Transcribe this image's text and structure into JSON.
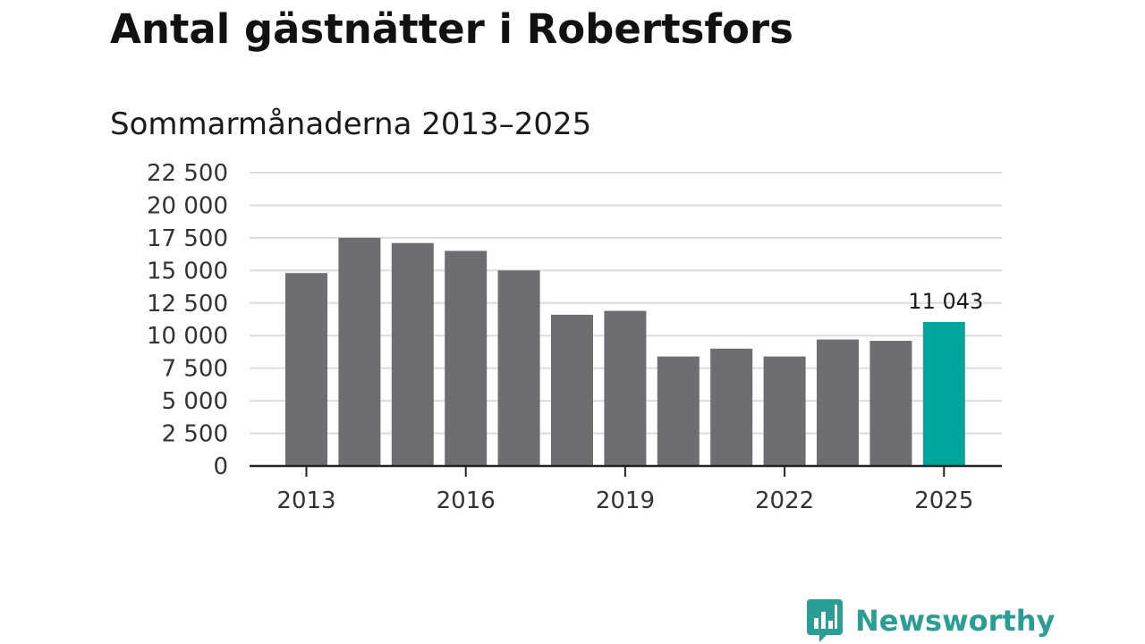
{
  "title": "Antal gästnätter i Robertsfors",
  "subtitle": "Sommarmånaderna 2013–2025",
  "brand": {
    "name": "Newsworthy",
    "logo_icon": "bar-chart-speech-bubble",
    "color": "#2a9d95"
  },
  "colors": {
    "bar": "#6e6d72",
    "highlight": "#00a49a",
    "grid": "#dcdcdc",
    "axis": "#222222"
  },
  "chart_data": {
    "type": "bar",
    "categories": [
      "2013",
      "2014",
      "2015",
      "2016",
      "2017",
      "2018",
      "2019",
      "2020",
      "2021",
      "2022",
      "2023",
      "2024",
      "2025"
    ],
    "values": [
      14800,
      17500,
      17100,
      16500,
      15000,
      11600,
      11900,
      8400,
      9000,
      8400,
      9700,
      9600,
      11043
    ],
    "highlight_index": 12,
    "highlight_label": "11 043",
    "title": "Antal gästnätter i Robertsfors",
    "subtitle": "Sommarmånaderna 2013–2025",
    "xlabel": "",
    "ylabel": "",
    "ylim": [
      0,
      22500
    ],
    "yticks": [
      0,
      2500,
      5000,
      7500,
      10000,
      12500,
      15000,
      17500,
      20000,
      22500
    ],
    "ytick_labels": [
      "0",
      "2 500",
      "5 000",
      "7 500",
      "10 000",
      "12 500",
      "15 000",
      "17 500",
      "20 000",
      "22 500"
    ],
    "xtick_labels": [
      "2013",
      "2016",
      "2019",
      "2022",
      "2025"
    ],
    "grid": true,
    "legend": "none"
  }
}
